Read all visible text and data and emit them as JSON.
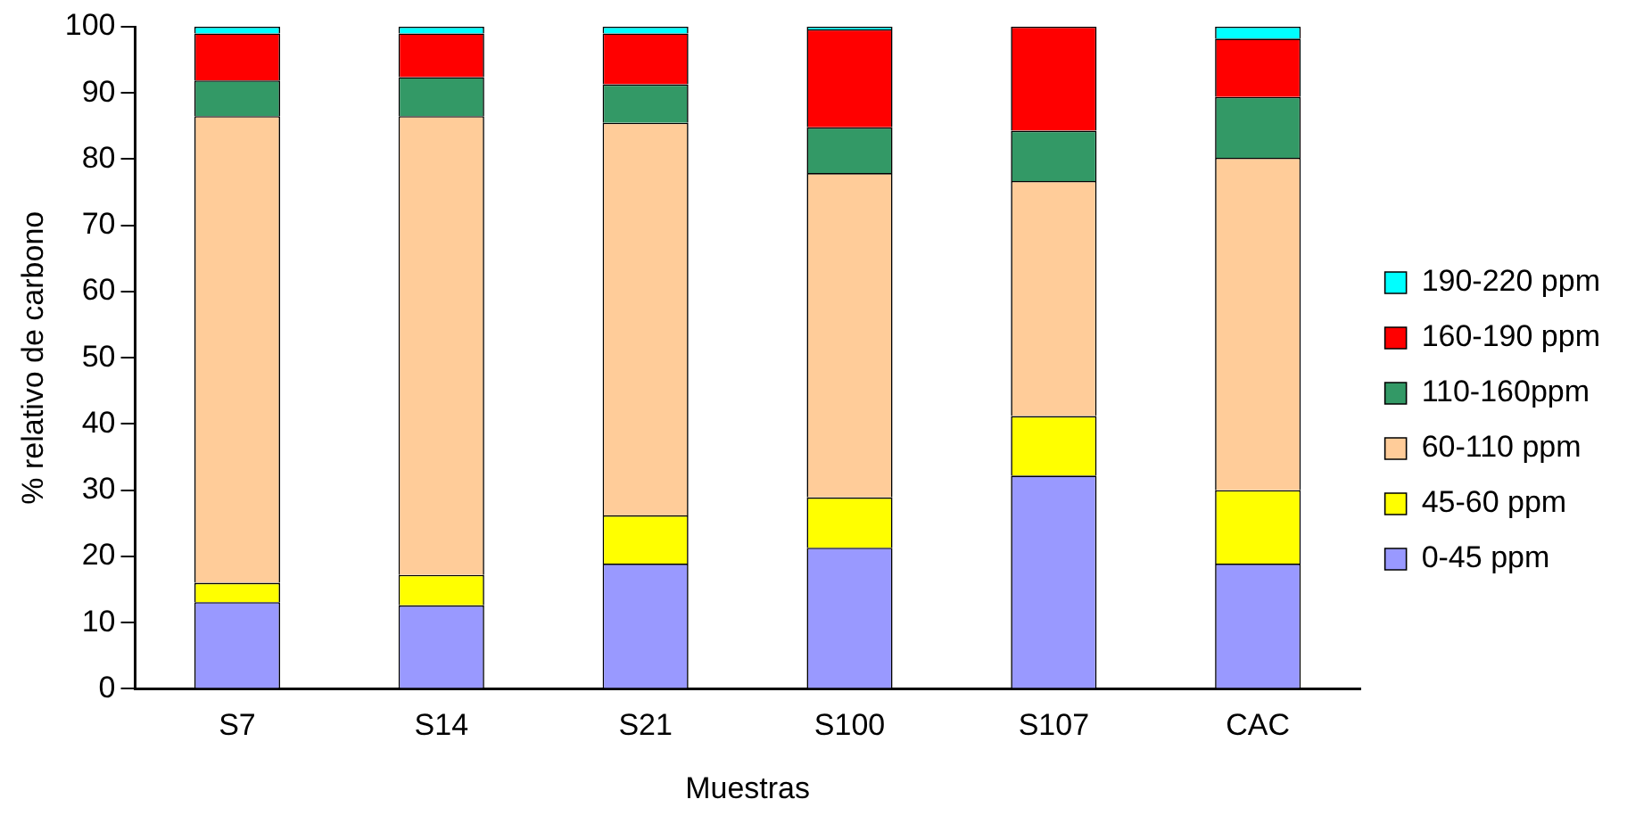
{
  "chart_data": {
    "type": "bar",
    "stacked": true,
    "xlabel": "Muestras",
    "ylabel": "% relativo de carbono",
    "categories": [
      "S7",
      "S14",
      "S21",
      "S100",
      "S107",
      "CAC"
    ],
    "series": [
      {
        "name": "0-45 ppm",
        "color": "#9999ff",
        "values": [
          13.1,
          12.6,
          18.9,
          21.3,
          32.2,
          18.9
        ]
      },
      {
        "name": "45-60 ppm",
        "color": "#ffff00",
        "values": [
          2.9,
          4.6,
          7.3,
          7.6,
          9.0,
          11.1
        ]
      },
      {
        "name": "60-110 ppm",
        "color": "#ffcc99",
        "values": [
          70.5,
          69.3,
          59.3,
          49.0,
          35.5,
          50.2
        ]
      },
      {
        "name": "110-160ppm",
        "color": "#339966",
        "values": [
          5.4,
          5.9,
          5.8,
          6.9,
          7.6,
          9.2
        ]
      },
      {
        "name": "160-190 ppm",
        "color": "#ff0000",
        "values": [
          7.1,
          6.6,
          7.7,
          14.8,
          15.7,
          8.8
        ]
      },
      {
        "name": "190-220 ppm",
        "color": "#00ffff",
        "values": [
          1.0,
          1.0,
          1.0,
          0.4,
          0.0,
          1.8
        ]
      }
    ],
    "ylim": [
      0,
      100
    ],
    "yticks": [
      0,
      10,
      20,
      30,
      40,
      50,
      60,
      70,
      80,
      90,
      100
    ],
    "grid": false,
    "legend": "right"
  }
}
